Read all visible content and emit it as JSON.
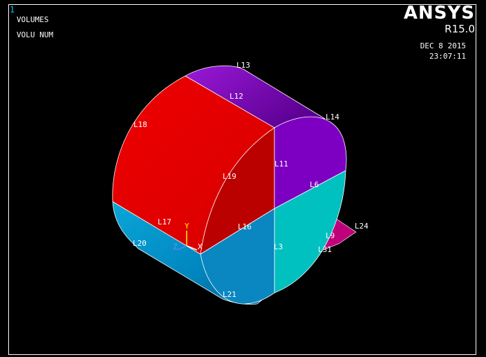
{
  "window": {
    "number": "1",
    "plot_title": "VOLUMES",
    "plot_subtitle": "VOLU NUM"
  },
  "brand": {
    "name": "ANSYS",
    "version": "R15.0"
  },
  "timestamp": {
    "date": "DEC  8 2015",
    "time": "23:07:11"
  },
  "triad": {
    "x": "X",
    "y": "Y",
    "z": "Z"
  },
  "line_labels": {
    "l13": "L13",
    "l12": "L12",
    "l14": "L14",
    "l18": "L18",
    "l11": "L11",
    "l19": "L19",
    "l6": "L6",
    "l17": "L17",
    "l16": "L16",
    "l24": "L24",
    "l9": "L9",
    "l31": "L31",
    "l20": "L20",
    "l3": "L3",
    "l21": "L21"
  },
  "colors": {
    "background": "#000000",
    "red_volume": "#e00000",
    "red_face_dark": "#b80000",
    "purple_volume": "#7a00c0",
    "cyan_volume": "#00c0c0",
    "blue_volume": "#0088c0",
    "magenta_plate": "#c0007a",
    "triad_y": "#ffff00"
  }
}
